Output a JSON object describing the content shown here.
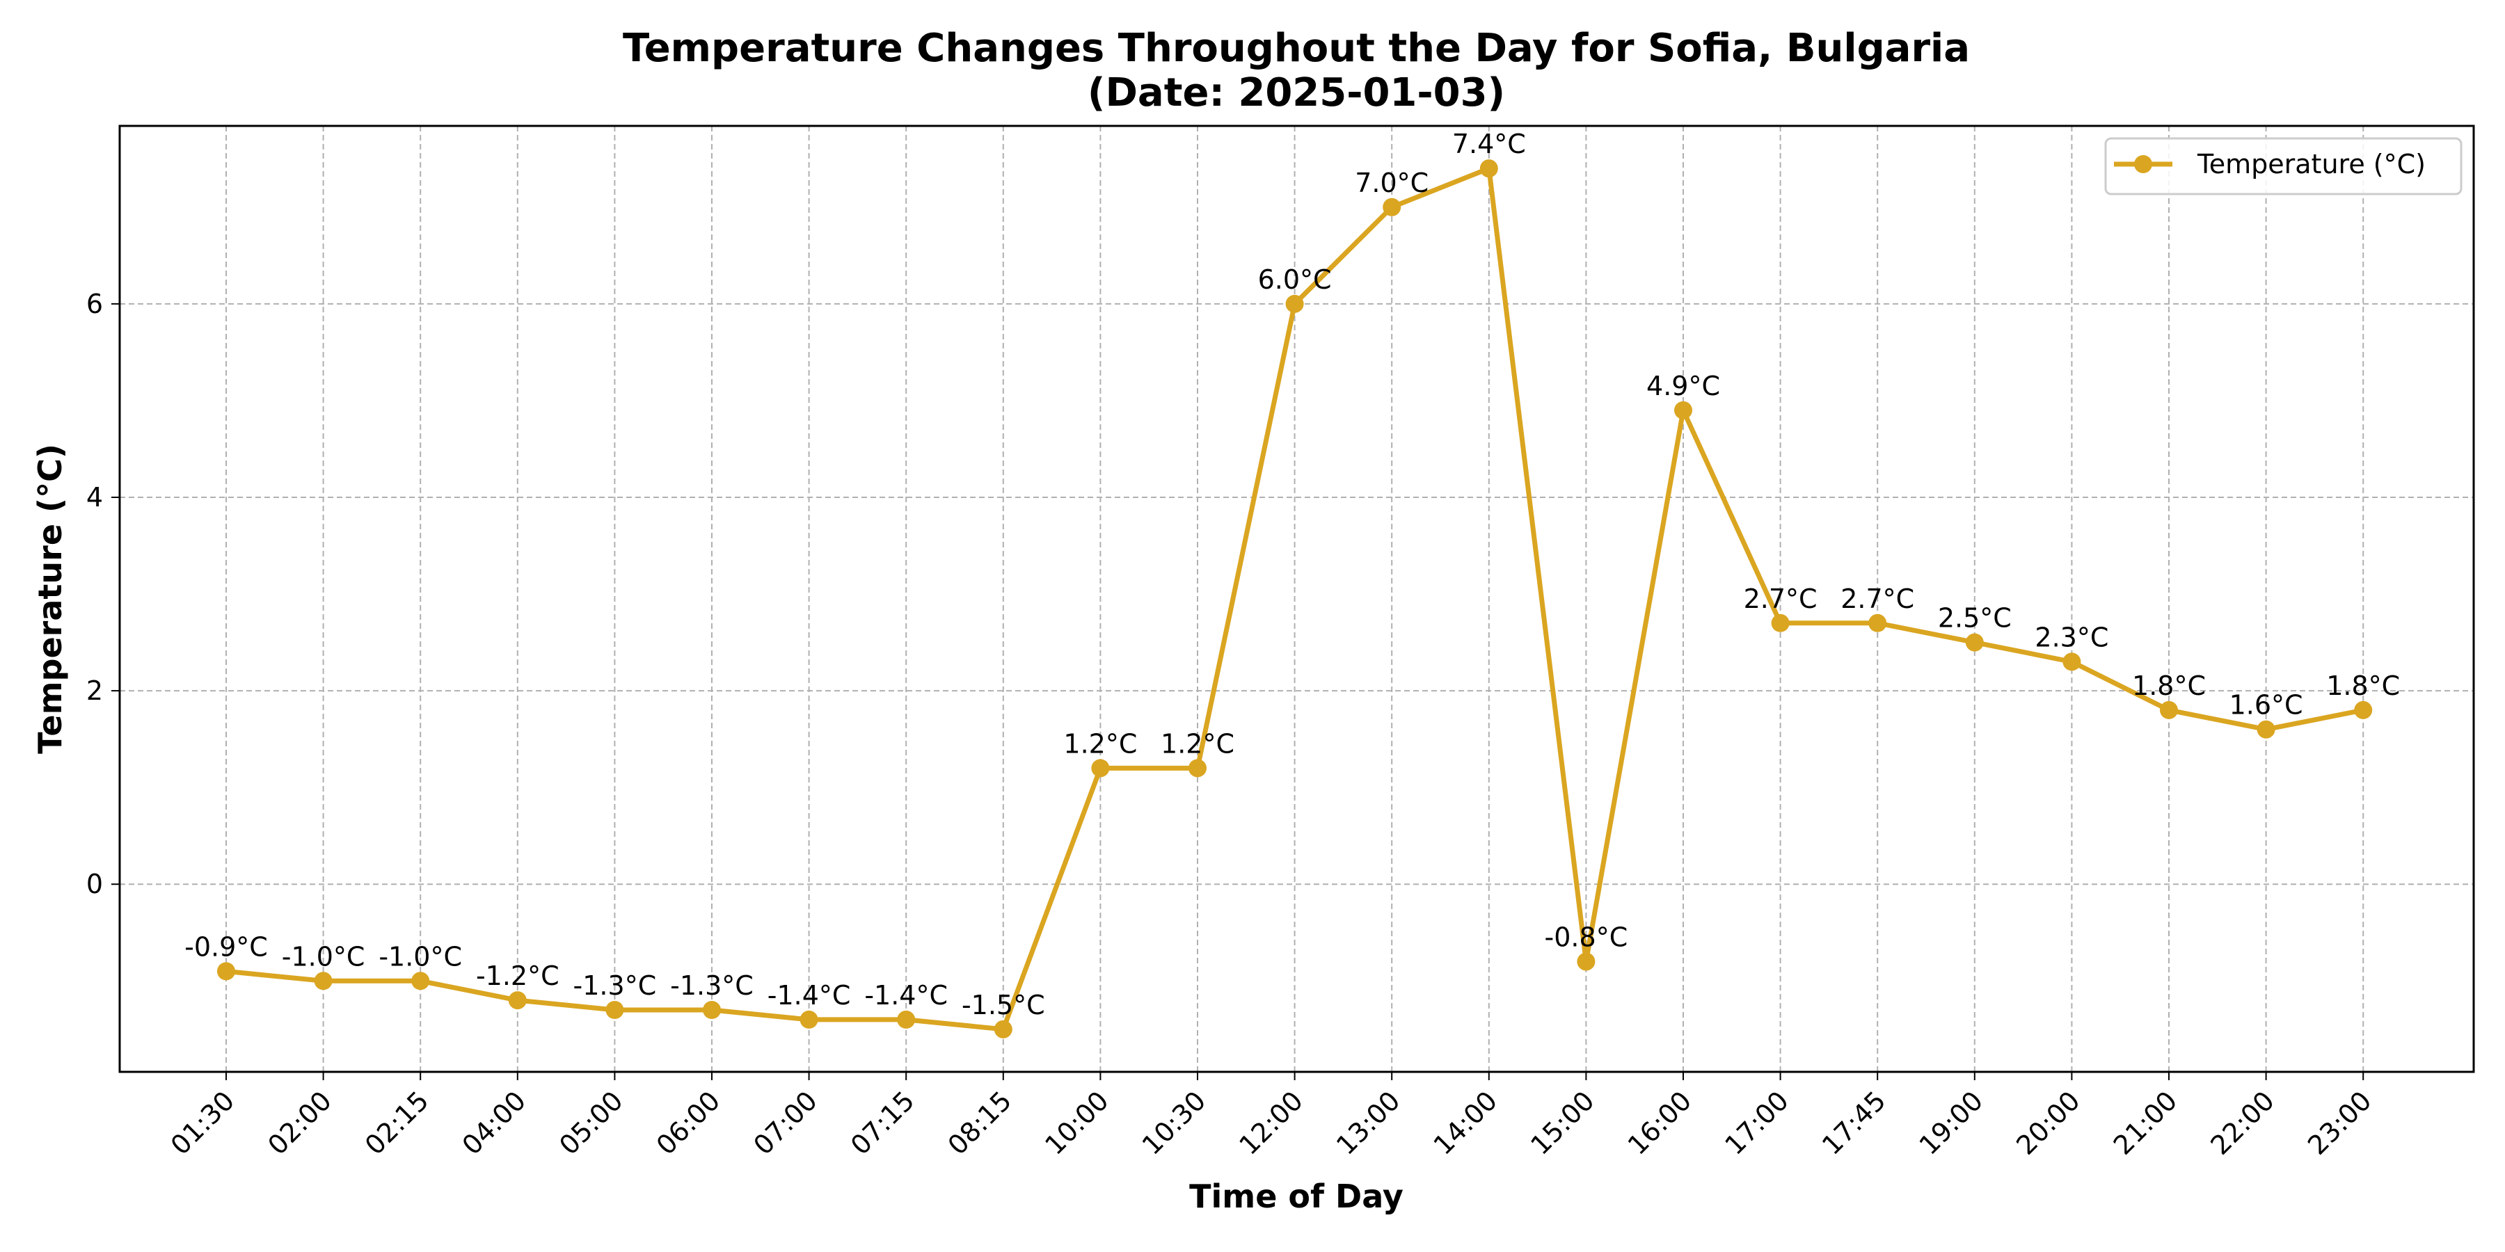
{
  "chart_data": {
    "type": "line",
    "title": "Temperature Changes Throughout the Day for Sofia, Bulgaria",
    "subtitle": "(Date: 2025-01-03)",
    "xlabel": "Time of Day",
    "ylabel": "Temperature (°C)",
    "categories": [
      "01:30",
      "02:00",
      "02:15",
      "04:00",
      "05:00",
      "06:00",
      "07:00",
      "07:15",
      "08:15",
      "10:00",
      "10:30",
      "12:00",
      "13:00",
      "14:00",
      "15:00",
      "16:00",
      "17:00",
      "17:45",
      "19:00",
      "20:00",
      "21:00",
      "22:00",
      "23:00"
    ],
    "series": [
      {
        "name": "Temperature (°C)",
        "color": "#DAA520",
        "values": [
          -0.9,
          -1.0,
          -1.0,
          -1.2,
          -1.3,
          -1.3,
          -1.4,
          -1.4,
          -1.5,
          1.2,
          1.2,
          6.0,
          7.0,
          7.4,
          -0.8,
          4.9,
          2.7,
          2.7,
          2.5,
          2.3,
          1.8,
          1.6,
          1.8
        ],
        "labels": [
          "-0.9°C",
          "-1.0°C",
          "-1.0°C",
          "-1.2°C",
          "-1.3°C",
          "-1.3°C",
          "-1.4°C",
          "-1.4°C",
          "-1.5°C",
          "1.2°C",
          "1.2°C",
          "6.0°C",
          "7.0°C",
          "7.4°C",
          "-0.8°C",
          "4.9°C",
          "2.7°C",
          "2.7°C",
          "2.5°C",
          "2.3°C",
          "1.8°C",
          "1.6°C",
          "1.8°C"
        ]
      }
    ],
    "ylim": [
      -1.94,
      7.84
    ],
    "yticks": [
      0,
      2,
      4,
      6
    ],
    "ytick_labels": [
      "0",
      "2",
      "4",
      "6"
    ],
    "grid": true,
    "legend_position": "top-right"
  }
}
